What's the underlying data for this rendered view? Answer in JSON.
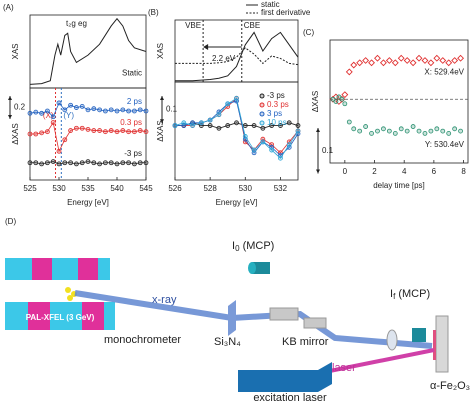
{
  "chart_data": [
    {
      "type": "line",
      "title": "(A)",
      "ylabel": "XAS",
      "xlim": [
        525,
        545
      ],
      "ylim": [
        0,
        1
      ],
      "legend": "inline",
      "annotations": [
        "t₂g",
        "eg"
      ],
      "x": [
        525,
        527,
        528.5,
        529.3,
        529.8,
        530.3,
        531,
        531.5,
        532,
        533,
        535,
        537,
        539,
        540,
        541,
        542,
        543,
        545
      ],
      "series": [
        {
          "name": "Static",
          "color": "#222222",
          "values": [
            0.05,
            0.06,
            0.1,
            0.45,
            0.6,
            0.45,
            0.72,
            0.75,
            0.5,
            0.35,
            0.45,
            0.6,
            0.85,
            0.95,
            0.85,
            0.65,
            0.55,
            0.5
          ]
        }
      ]
    },
    {
      "type": "line",
      "ylabel": "ΔXAS",
      "xlabel": "Energy [eV]",
      "xlim": [
        525,
        545
      ],
      "ylim": [
        -0.55,
        0.25
      ],
      "xticks": [
        525,
        530,
        535,
        540,
        545
      ],
      "legend": "inline",
      "scalebar": 0.2,
      "vlines": [
        {
          "label": "(X)",
          "x": 529.4,
          "color": "#e03030"
        },
        {
          "label": "(Y)",
          "x": 530.4,
          "color": "#3070c0"
        }
      ],
      "x": [
        525,
        526,
        527,
        528,
        529,
        530,
        531,
        532,
        533,
        534,
        535,
        536,
        537,
        538,
        539,
        540,
        541,
        542,
        543,
        544,
        545
      ],
      "series": [
        {
          "name": "2 ps",
          "color": "#2060c0",
          "marker": "circle",
          "values": [
            0.03,
            0.04,
            0.03,
            0.05,
            0.0,
            0.12,
            0.06,
            0.1,
            0.08,
            0.09,
            0.06,
            0.07,
            0.06,
            0.05,
            0.06,
            0.05,
            0.06,
            0.05,
            0.05,
            0.06,
            0.05
          ]
        },
        {
          "name": "0.3 ps",
          "color": "#e03030",
          "marker": "circle",
          "values": [
            -0.15,
            -0.15,
            -0.14,
            -0.13,
            -0.05,
            -0.3,
            -0.2,
            -0.12,
            -0.1,
            -0.1,
            -0.11,
            -0.12,
            -0.12,
            -0.13,
            -0.12,
            -0.13,
            -0.12,
            -0.13,
            -0.13,
            -0.12,
            -0.13
          ]
        },
        {
          "name": "-3 ps",
          "color": "#222222",
          "marker": "circle",
          "values": [
            -0.4,
            -0.4,
            -0.41,
            -0.4,
            -0.39,
            -0.41,
            -0.4,
            -0.4,
            -0.41,
            -0.4,
            -0.39,
            -0.4,
            -0.41,
            -0.4,
            -0.4,
            -0.41,
            -0.4,
            -0.4,
            -0.41,
            -0.4,
            -0.4
          ]
        }
      ]
    },
    {
      "type": "line",
      "title": "(B)",
      "ylabel": "XAS",
      "xlim": [
        526,
        533
      ],
      "ylim": [
        0,
        1
      ],
      "legend": "top",
      "annotations": [
        "2.2 eV"
      ],
      "vlines": [
        {
          "label": "VBE",
          "x": 527.6,
          "color": "#222222"
        },
        {
          "label": "CBE",
          "x": 529.8,
          "color": "#222222"
        }
      ],
      "x": [
        526,
        526.5,
        527,
        527.5,
        528,
        528.5,
        529,
        529.5,
        530,
        530.5,
        531,
        531.5,
        532,
        532.5,
        533
      ],
      "series": [
        {
          "name": "static",
          "color": "#222222",
          "values": [
            0.02,
            0.02,
            0.02,
            0.03,
            0.04,
            0.06,
            0.1,
            0.25,
            0.6,
            0.8,
            0.5,
            0.7,
            0.8,
            0.6,
            0.4
          ]
        },
        {
          "name": "first derivative",
          "color": "#222222",
          "dash": true,
          "values": [
            0.3,
            0.3,
            0.3,
            0.3,
            0.3,
            0.31,
            0.33,
            0.4,
            0.55,
            0.45,
            0.3,
            0.42,
            0.38,
            0.3,
            0.28
          ]
        }
      ]
    },
    {
      "type": "line",
      "ylabel": "ΔXAS",
      "xlabel": "Energy [eV]",
      "xlim": [
        526,
        533
      ],
      "ylim": [
        -0.2,
        0.16
      ],
      "xticks": [
        526,
        528,
        530,
        532
      ],
      "legend": "upper right",
      "scalebar": 0.1,
      "x": [
        526,
        526.5,
        527,
        527.5,
        528,
        528.5,
        529,
        529.5,
        530,
        530.5,
        531,
        531.5,
        532,
        532.5,
        533
      ],
      "series": [
        {
          "name": "-3 ps",
          "color": "#222222",
          "marker": "circle",
          "values": [
            0,
            0,
            0.01,
            0,
            0,
            -0.01,
            0,
            0.01,
            0,
            0,
            -0.01,
            0,
            0,
            0.01,
            0
          ]
        },
        {
          "name": "0.3 ps",
          "color": "#e03030",
          "marker": "circle",
          "values": [
            0,
            0,
            0,
            0.01,
            0.02,
            0.04,
            0.07,
            0.1,
            -0.06,
            -0.09,
            -0.05,
            -0.07,
            -0.1,
            -0.06,
            -0.02
          ]
        },
        {
          "name": "3 ps",
          "color": "#2060c0",
          "marker": "circle",
          "values": [
            0,
            0,
            0.01,
            0.01,
            0.02,
            0.05,
            0.08,
            0.09,
            -0.05,
            -0.1,
            -0.06,
            -0.08,
            -0.11,
            -0.08,
            -0.03
          ]
        },
        {
          "name": "10 ps",
          "color": "#30a8d8",
          "marker": "circle",
          "values": [
            0,
            0.01,
            0,
            0.01,
            0.02,
            0.04,
            0.08,
            0.1,
            -0.04,
            -0.09,
            -0.06,
            -0.09,
            -0.12,
            -0.07,
            -0.02
          ]
        }
      ]
    },
    {
      "type": "scatter",
      "title": "(C)",
      "ylabel": "ΔXAS",
      "xlabel": "delay time [ps]",
      "xlim": [
        -1,
        8.3
      ],
      "ylim": [
        -0.14,
        0.13
      ],
      "xticks": [
        0,
        2,
        4,
        6,
        8
      ],
      "legend": "inline",
      "zero_line": true,
      "scalebar": 0.1,
      "x": [
        -0.8,
        -0.6,
        -0.4,
        -0.2,
        0,
        0.3,
        0.6,
        1,
        1.4,
        1.8,
        2.2,
        2.6,
        3,
        3.4,
        3.8,
        4.2,
        4.6,
        5,
        5.4,
        5.8,
        6.2,
        6.6,
        7,
        7.4,
        7.8
      ],
      "series": [
        {
          "name": "X: 529.4eV",
          "color": "#e03030",
          "marker": "diamond",
          "values": [
            0,
            0.005,
            -0.005,
            0,
            0.01,
            0.06,
            0.075,
            0.08,
            0.085,
            0.08,
            0.09,
            0.08,
            0.085,
            0.08,
            0.09,
            0.085,
            0.08,
            0.09,
            0.085,
            0.08,
            0.09,
            0.085,
            0.08,
            0.085,
            0.09
          ]
        },
        {
          "name": "Y: 530.4eV",
          "color": "#2a9070",
          "marker": "circle",
          "values": [
            0,
            -0.005,
            0.005,
            0,
            -0.01,
            -0.05,
            -0.065,
            -0.07,
            -0.06,
            -0.075,
            -0.07,
            -0.065,
            -0.07,
            -0.075,
            -0.065,
            -0.07,
            -0.06,
            -0.07,
            -0.075,
            -0.07,
            -0.065,
            -0.07,
            -0.075,
            -0.065,
            -0.07
          ]
        }
      ]
    }
  ],
  "diagram": {
    "label": "(D)",
    "source": "PAL-XFEL (3 GeV)",
    "beam": "x-ray",
    "i0": {
      "main": "I",
      "sub": "0",
      "rest": " (MCP)"
    },
    "if": {
      "main": "I",
      "sub": "f",
      "rest": " (MCP)"
    },
    "mono": "monochrometer",
    "window": "Si₃N₄",
    "mirror": "KB mirror",
    "laser": "laser",
    "laser_source": "excitation laser",
    "sample": "α-Fe₂O₃"
  }
}
